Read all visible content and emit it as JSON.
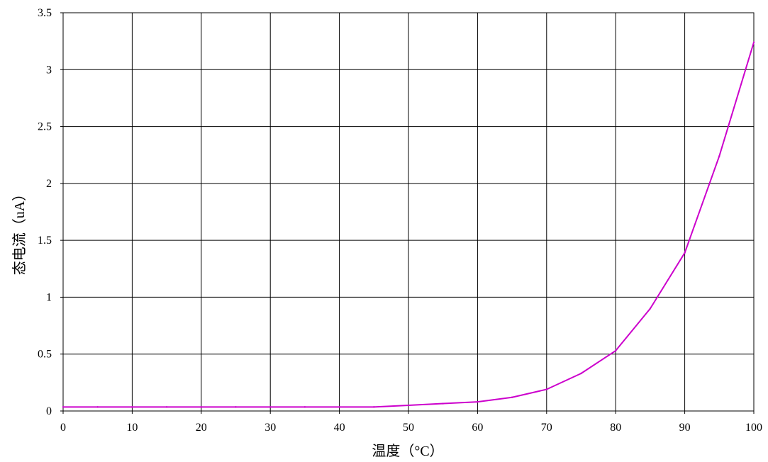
{
  "chart_data": {
    "type": "line",
    "title": "",
    "xlabel": "温度（°C）",
    "ylabel": "态电流（uA）",
    "xlim": [
      0,
      100
    ],
    "ylim": [
      0,
      3.5
    ],
    "x_ticks": [
      0,
      10,
      20,
      30,
      40,
      50,
      60,
      70,
      80,
      90,
      100
    ],
    "y_ticks": [
      0,
      0.5,
      1,
      1.5,
      2,
      2.5,
      3,
      3.5
    ],
    "x_tick_labels": [
      "0",
      "10",
      "20",
      "30",
      "40",
      "50",
      "60",
      "70",
      "80",
      "90",
      "100"
    ],
    "y_tick_labels": [
      "0",
      "0.5",
      "1",
      "1.5",
      "2",
      "2.5",
      "3",
      "3.5"
    ],
    "grid": true,
    "legend": "none",
    "series": [
      {
        "color": "#cc00cc",
        "x": [
          0,
          5,
          10,
          15,
          20,
          25,
          30,
          35,
          40,
          45,
          50,
          55,
          60,
          65,
          70,
          75,
          80,
          85,
          90,
          95,
          100
        ],
        "y": [
          0.035,
          0.035,
          0.035,
          0.035,
          0.035,
          0.035,
          0.035,
          0.035,
          0.035,
          0.035,
          0.05,
          0.065,
          0.08,
          0.12,
          0.19,
          0.33,
          0.53,
          0.9,
          1.39,
          2.24,
          3.24
        ]
      }
    ]
  }
}
